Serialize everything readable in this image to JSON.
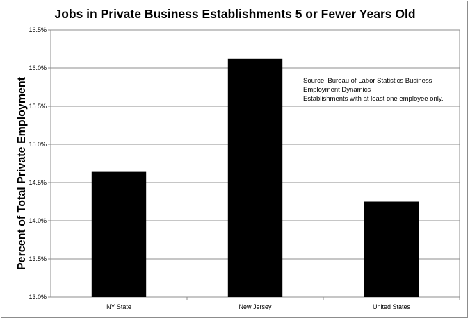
{
  "chart_data": {
    "type": "bar",
    "title": "Jobs in Private Business Establishments 5 or Fewer Years Old",
    "ylabel": "Percent of Total Private Employment",
    "xlabel": "",
    "categories": [
      "NY State",
      "New Jersey",
      "United States"
    ],
    "values": [
      14.64,
      16.12,
      14.25
    ],
    "ylim": [
      13.0,
      16.5
    ],
    "yticks": [
      13.0,
      13.5,
      14.0,
      14.5,
      15.0,
      15.5,
      16.0,
      16.5
    ],
    "ytick_labels": [
      "13.0%",
      "13.5%",
      "14.0%",
      "14.5%",
      "15.0%",
      "15.5%",
      "16.0%",
      "16.5%"
    ],
    "grid": true,
    "bar_color": "#000000",
    "annotation": [
      "Source:  Bureau of Labor Statistics Business",
      "Employment Dynamics",
      "Establishments with at least one employee only."
    ]
  }
}
